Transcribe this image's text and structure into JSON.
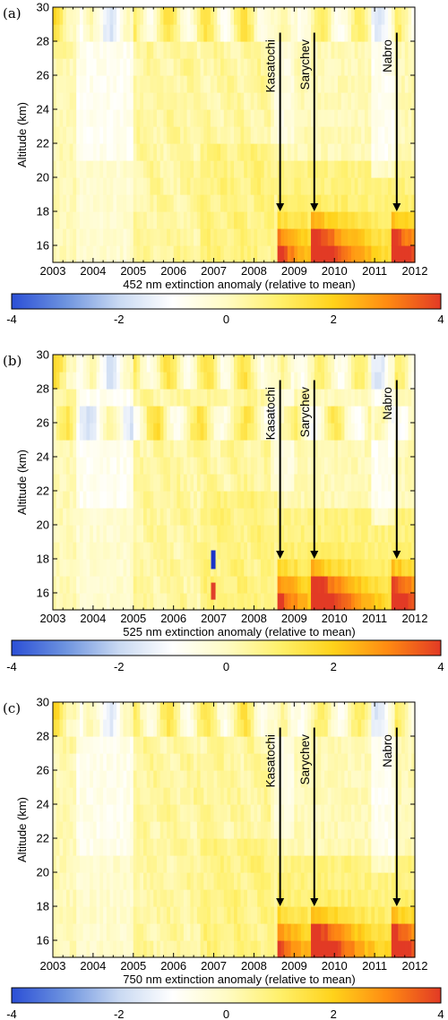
{
  "chart_data": [
    {
      "type": "heatmap",
      "panel_label": "(a)",
      "ylabel": "Altitude (km)",
      "colorbar_label": "452 nm extinction anomaly (relative to mean)",
      "x_ticks": [
        "2003",
        "2004",
        "2005",
        "2006",
        "2007",
        "2008",
        "2009",
        "2010",
        "2011",
        "2012"
      ],
      "y_ticks": [
        "16",
        "18",
        "20",
        "22",
        "24",
        "26",
        "28",
        "30"
      ],
      "xlim": [
        2003,
        2012
      ],
      "ylim": [
        15,
        30
      ],
      "colorbar_ticks": [
        "-4",
        "-2",
        "0",
        "2",
        "4"
      ],
      "colorbar_range": [
        -4,
        4
      ],
      "grid": false,
      "annotations": [
        {
          "label": "Kasatochi",
          "x": 2008.65,
          "y_from": 28.5,
          "y_to": 18.0
        },
        {
          "label": "Sarychev",
          "x": 2009.5,
          "y_from": 28.5,
          "y_to": 18.0
        },
        {
          "label": "Nabro",
          "x": 2011.55,
          "y_from": 28.5,
          "y_to": 18.0
        }
      ]
    },
    {
      "type": "heatmap",
      "panel_label": "(b)",
      "ylabel": "Altitude (km)",
      "colorbar_label": "525 nm extinction anomaly (relative to mean)",
      "x_ticks": [
        "2003",
        "2004",
        "2005",
        "2006",
        "2007",
        "2008",
        "2009",
        "2010",
        "2011",
        "2012"
      ],
      "y_ticks": [
        "16",
        "18",
        "20",
        "22",
        "24",
        "26",
        "28",
        "30"
      ],
      "xlim": [
        2003,
        2012
      ],
      "ylim": [
        15,
        30
      ],
      "colorbar_ticks": [
        "-4",
        "-2",
        "0",
        "2",
        "4"
      ],
      "colorbar_range": [
        -4,
        4
      ],
      "grid": false,
      "annotations": [
        {
          "label": "Kasatochi",
          "x": 2008.65,
          "y_from": 28.5,
          "y_to": 18.0
        },
        {
          "label": "Sarychev",
          "x": 2009.5,
          "y_from": 28.5,
          "y_to": 18.0
        },
        {
          "label": "Nabro",
          "x": 2011.55,
          "y_from": 28.5,
          "y_to": 18.0
        }
      ]
    },
    {
      "type": "heatmap",
      "panel_label": "(c)",
      "ylabel": "Altitude (km)",
      "colorbar_label": "750 nm extinction anomaly (relative to mean)",
      "x_ticks": [
        "2003",
        "2004",
        "2005",
        "2006",
        "2007",
        "2008",
        "2009",
        "2010",
        "2011",
        "2012"
      ],
      "y_ticks": [
        "16",
        "18",
        "20",
        "22",
        "24",
        "26",
        "28",
        "30"
      ],
      "xlim": [
        2003,
        2012
      ],
      "ylim": [
        15,
        30
      ],
      "colorbar_ticks": [
        "-4",
        "-2",
        "0",
        "2",
        "4"
      ],
      "colorbar_range": [
        -4,
        4
      ],
      "grid": false,
      "annotations": [
        {
          "label": "Kasatochi",
          "x": 2008.65,
          "y_from": 28.5,
          "y_to": 18.0
        },
        {
          "label": "Sarychev",
          "x": 2009.5,
          "y_from": 28.5,
          "y_to": 18.0
        },
        {
          "label": "Nabro",
          "x": 2011.55,
          "y_from": 28.5,
          "y_to": 18.0
        }
      ]
    }
  ],
  "colors": {
    "scale": [
      "#2b4fd6",
      "#6d93df",
      "#c9d9f2",
      "#ffffff",
      "#fffbc4",
      "#fff06b",
      "#ffd21a",
      "#ff8b12",
      "#e23a25"
    ],
    "axis": "#000000",
    "arrow": "#000000"
  }
}
